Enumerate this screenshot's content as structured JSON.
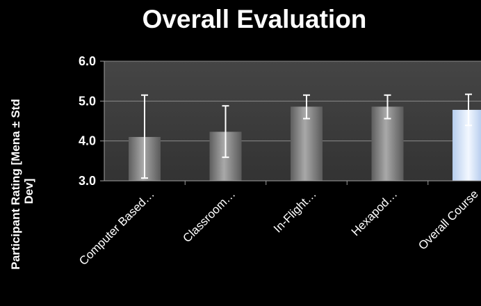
{
  "chart_data": {
    "type": "bar",
    "title": "Overall Evaluation",
    "ylabel_line1": "Participant Rating  [Mena ± Std",
    "ylabel_line2": "Dev]",
    "xlabel": "",
    "categories": [
      "Computer Based…",
      "Classroom…",
      "In-Flight…",
      "Hexapod…",
      "Overall Course"
    ],
    "values": [
      4.1,
      4.23,
      4.86,
      4.86,
      4.78
    ],
    "error_low": [
      3.07,
      3.59,
      4.56,
      4.56,
      4.39
    ],
    "error_high": [
      5.15,
      4.88,
      5.15,
      5.15,
      5.17
    ],
    "ylim": [
      3.0,
      6.0
    ],
    "yticks": [
      "3.0",
      "4.0",
      "5.0",
      "6.0"
    ],
    "grid": true,
    "legend": "none",
    "colors": {
      "background": "#000000",
      "plot_area": "#3d3d3d",
      "gridline": "#8a8a8a",
      "bar": "#7a7a7a",
      "highlight_bar": "#cfe0f8",
      "error_bar": "#ffffff",
      "text": "#ffffff"
    }
  }
}
